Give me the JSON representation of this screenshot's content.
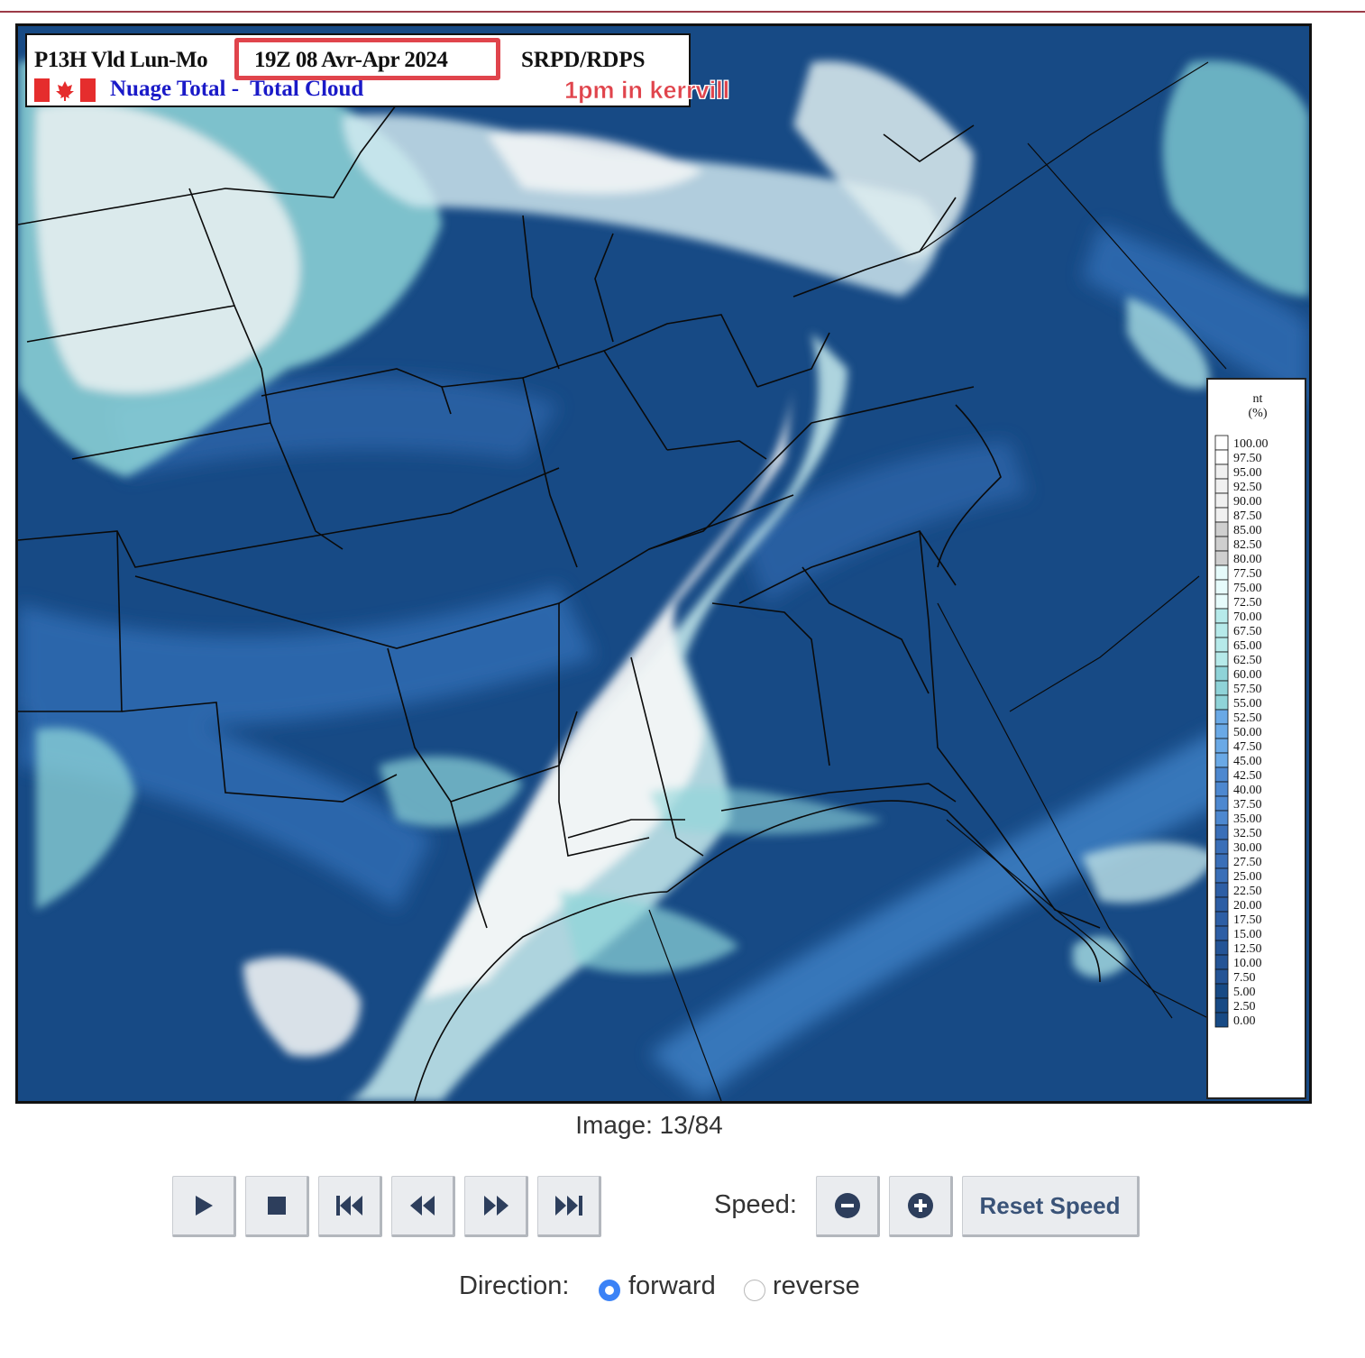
{
  "map": {
    "header_line1_left": "P13H Vld Lun-Mo",
    "header_date": "19Z 08 Avr-Apr 2024",
    "header_model": "SRPD/RDPS",
    "header_line2": "Nuage Total -  Total Cloud",
    "annotation_text": "1pm in kerrvill",
    "annotation_color": "#e0444c",
    "ocean_color": "#174a85"
  },
  "legend": {
    "unit_line1": "nt",
    "unit_line2": "(%)",
    "values": [
      "100.00",
      "97.50",
      "95.00",
      "92.50",
      "90.00",
      "87.50",
      "85.00",
      "82.50",
      "80.00",
      "77.50",
      "75.00",
      "72.50",
      "70.00",
      "67.50",
      "65.00",
      "62.50",
      "60.00",
      "57.50",
      "55.00",
      "52.50",
      "50.00",
      "47.50",
      "45.00",
      "42.50",
      "40.00",
      "37.50",
      "35.00",
      "32.50",
      "30.00",
      "27.50",
      "25.00",
      "22.50",
      "20.00",
      "17.50",
      "15.00",
      "12.50",
      "10.00",
      "7.50",
      "5.00",
      "2.50",
      "0.00"
    ]
  },
  "player": {
    "image_counter": "Image: 13/84",
    "controls": [
      "play",
      "stop",
      "first",
      "previous",
      "next",
      "last"
    ],
    "speed_label": "Speed:",
    "speed_decrease": "minus",
    "speed_increase": "plus",
    "reset_speed_label": "Reset Speed",
    "direction_label": "Direction:",
    "direction_options": [
      "forward",
      "reverse"
    ],
    "direction_selected": "forward"
  }
}
